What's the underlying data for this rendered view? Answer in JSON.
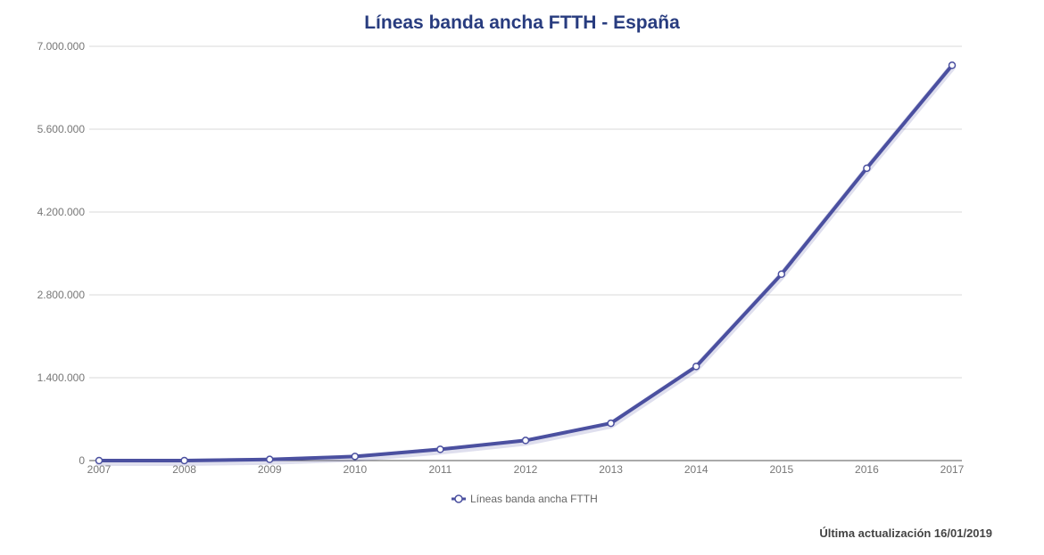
{
  "chart_data": {
    "type": "line",
    "title": "Líneas banda ancha FTTH - España",
    "xlabel": "",
    "ylabel": "",
    "x": [
      "2007",
      "2008",
      "2009",
      "2010",
      "2011",
      "2012",
      "2013",
      "2014",
      "2015",
      "2016",
      "2017"
    ],
    "yticks": [
      "0",
      "1.400.000",
      "2.800.000",
      "4.200.000",
      "5.600.000",
      "7.000.000"
    ],
    "ylim": [
      0,
      7000000
    ],
    "grid": true,
    "legend": "bottom-center",
    "series": [
      {
        "name": "Líneas banda ancha FTTH",
        "color": "#4b50a0",
        "values": [
          0,
          0,
          20000,
          70000,
          190000,
          340000,
          630000,
          1590000,
          3150000,
          4940000,
          6680000
        ]
      }
    ]
  },
  "footer": {
    "updated": "Última actualización 16/01/2019"
  }
}
